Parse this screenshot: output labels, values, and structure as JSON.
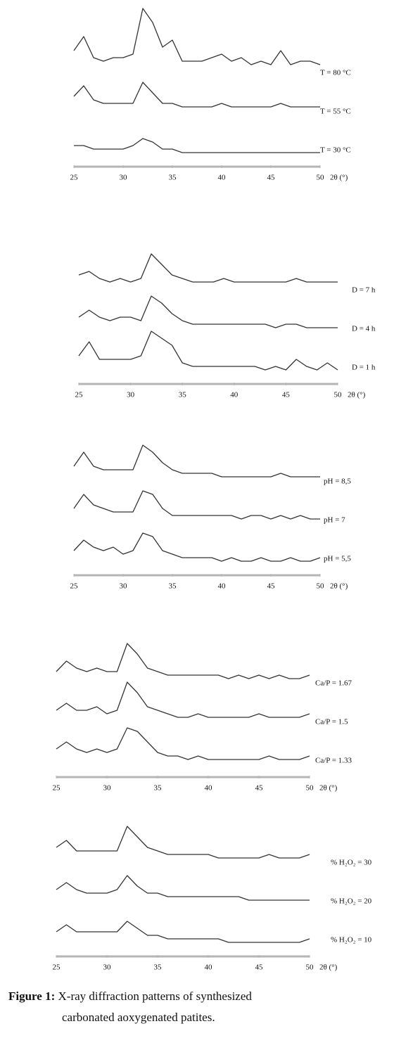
{
  "chart_data": [
    {
      "type": "line",
      "x_label": "2θ (°)",
      "x": [
        25,
        26,
        27,
        28,
        29,
        30,
        31,
        32,
        33,
        34,
        35,
        36,
        37,
        38,
        39,
        40,
        41,
        42,
        43,
        44,
        45,
        46,
        47,
        48,
        49,
        50
      ],
      "xlim": [
        25,
        50
      ],
      "xticks": [
        25,
        30,
        35,
        40,
        45,
        50
      ],
      "series": [
        {
          "name": "T = 80 °C",
          "color": "#333333",
          "values": [
            8,
            12,
            6,
            5,
            6,
            6,
            7,
            20,
            16,
            9,
            11,
            5,
            5,
            5,
            6,
            7,
            5,
            6,
            4,
            5,
            4,
            8,
            4,
            5,
            5,
            4
          ]
        },
        {
          "name": "T = 55 °C",
          "color": "#333333",
          "values": [
            6,
            9,
            5,
            4,
            4,
            4,
            4,
            10,
            7,
            4,
            4,
            3,
            3,
            3,
            3,
            4,
            3,
            3,
            3,
            3,
            3,
            4,
            3,
            3,
            3,
            3
          ]
        },
        {
          "name": "T = 30 °C",
          "color": "#333333",
          "values": [
            3,
            3,
            2,
            2,
            2,
            2,
            3,
            5,
            4,
            2,
            2,
            1,
            1,
            1,
            1,
            1,
            1,
            1,
            1,
            1,
            1,
            1,
            1,
            1,
            1,
            1
          ]
        }
      ]
    },
    {
      "type": "line",
      "x_label": "2θ (°)",
      "x": [
        25,
        26,
        27,
        28,
        29,
        30,
        31,
        32,
        33,
        34,
        35,
        36,
        37,
        38,
        39,
        40,
        41,
        42,
        43,
        44,
        45,
        46,
        47,
        48,
        49,
        50
      ],
      "xlim": [
        25,
        50
      ],
      "xticks": [
        25,
        30,
        35,
        40,
        45,
        50
      ],
      "series": [
        {
          "name": "D = 7 h",
          "color": "#333333",
          "values": [
            6,
            7,
            5,
            4,
            5,
            4,
            5,
            12,
            9,
            6,
            5,
            4,
            4,
            4,
            5,
            4,
            4,
            4,
            4,
            4,
            4,
            5,
            4,
            4,
            4,
            4
          ]
        },
        {
          "name": "D = 4 h",
          "color": "#333333",
          "values": [
            5,
            7,
            5,
            4,
            5,
            5,
            4,
            11,
            9,
            6,
            4,
            3,
            3,
            3,
            3,
            3,
            3,
            3,
            3,
            2,
            3,
            3,
            2,
            2,
            2,
            2
          ]
        },
        {
          "name": "D = 1 h",
          "color": "#333333",
          "values": [
            5,
            9,
            4,
            4,
            4,
            4,
            5,
            12,
            10,
            8,
            3,
            2,
            2,
            2,
            2,
            2,
            2,
            2,
            1,
            2,
            1,
            4,
            2,
            1,
            3,
            1
          ]
        }
      ]
    },
    {
      "type": "line",
      "x_label": "2θ (°)",
      "x": [
        25,
        26,
        27,
        28,
        29,
        30,
        31,
        32,
        33,
        34,
        35,
        36,
        37,
        38,
        39,
        40,
        41,
        42,
        43,
        44,
        45,
        46,
        47,
        48,
        49,
        50
      ],
      "xlim": [
        25,
        50
      ],
      "xticks": [
        25,
        30,
        35,
        40,
        45,
        50
      ],
      "series": [
        {
          "name": "pH = 8,5",
          "color": "#333333",
          "values": [
            6,
            10,
            6,
            5,
            5,
            5,
            5,
            12,
            10,
            7,
            5,
            4,
            4,
            4,
            4,
            3,
            3,
            3,
            3,
            3,
            3,
            4,
            3,
            3,
            3,
            3
          ]
        },
        {
          "name": "pH = 7",
          "color": "#333333",
          "values": [
            5,
            9,
            6,
            5,
            4,
            4,
            4,
            10,
            9,
            5,
            3,
            3,
            3,
            3,
            3,
            3,
            3,
            2,
            3,
            3,
            2,
            3,
            2,
            3,
            2,
            2
          ]
        },
        {
          "name": "pH = 5,5",
          "color": "#333333",
          "values": [
            4,
            7,
            5,
            4,
            5,
            3,
            4,
            9,
            8,
            4,
            3,
            2,
            2,
            2,
            2,
            1,
            2,
            1,
            1,
            2,
            1,
            1,
            2,
            1,
            1,
            2
          ]
        }
      ]
    },
    {
      "type": "line",
      "x_label": "2θ (°)",
      "x": [
        25,
        26,
        27,
        28,
        29,
        30,
        31,
        32,
        33,
        34,
        35,
        36,
        37,
        38,
        39,
        40,
        41,
        42,
        43,
        44,
        45,
        46,
        47,
        48,
        49,
        50
      ],
      "xlim": [
        25,
        50
      ],
      "xticks": [
        25,
        30,
        35,
        40,
        45,
        50
      ],
      "series": [
        {
          "name": "Ca/P = 1.67",
          "color": "#333333",
          "values": [
            5,
            8,
            6,
            5,
            6,
            5,
            5,
            13,
            10,
            6,
            5,
            4,
            4,
            4,
            4,
            4,
            4,
            3,
            4,
            3,
            4,
            3,
            4,
            3,
            3,
            4
          ]
        },
        {
          "name": "Ca/P = 1.5",
          "color": "#333333",
          "values": [
            5,
            7,
            5,
            5,
            6,
            4,
            5,
            13,
            10,
            6,
            5,
            4,
            3,
            3,
            4,
            3,
            3,
            3,
            3,
            3,
            4,
            3,
            3,
            3,
            3,
            4
          ]
        },
        {
          "name": "Ca/P = 1.33",
          "color": "#333333",
          "values": [
            5,
            7,
            5,
            4,
            5,
            4,
            5,
            11,
            10,
            7,
            4,
            3,
            3,
            2,
            3,
            2,
            2,
            2,
            2,
            2,
            2,
            3,
            2,
            2,
            2,
            3
          ]
        }
      ]
    },
    {
      "type": "line",
      "x_label": "2θ (°)",
      "x": [
        25,
        26,
        27,
        28,
        29,
        30,
        31,
        32,
        33,
        34,
        35,
        36,
        37,
        38,
        39,
        40,
        41,
        42,
        43,
        44,
        45,
        46,
        47,
        48,
        49,
        50
      ],
      "xlim": [
        25,
        50
      ],
      "xticks": [
        25,
        30,
        35,
        40,
        45,
        50
      ],
      "series": [
        {
          "name": "% H₂O₂ = 30",
          "color": "#333333",
          "values": [
            6,
            8,
            5,
            5,
            5,
            5,
            5,
            12,
            9,
            6,
            5,
            4,
            4,
            4,
            4,
            4,
            3,
            3,
            3,
            3,
            3,
            4,
            3,
            3,
            3,
            4
          ]
        },
        {
          "name": "% H₂O₂ = 20",
          "color": "#333333",
          "values": [
            5,
            7,
            5,
            4,
            4,
            4,
            5,
            9,
            6,
            4,
            4,
            3,
            3,
            3,
            3,
            3,
            3,
            3,
            3,
            2,
            2,
            2,
            2,
            2,
            2,
            2
          ]
        },
        {
          "name": "% H₂O₂ = 10",
          "color": "#333333",
          "values": [
            4,
            6,
            4,
            4,
            4,
            4,
            4,
            7,
            5,
            3,
            3,
            2,
            2,
            2,
            2,
            2,
            2,
            1,
            1,
            1,
            1,
            1,
            1,
            1,
            1,
            2
          ]
        }
      ]
    }
  ],
  "caption": {
    "label": "Figure 1:",
    "text": "X-ray diffraction patterns of synthesized",
    "text2": "carbonated aoxygenated patites."
  }
}
